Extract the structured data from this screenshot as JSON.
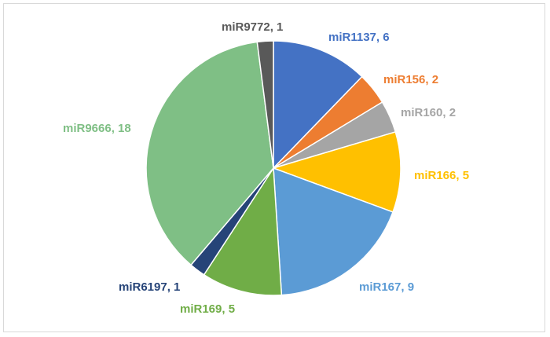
{
  "chart_data": {
    "type": "pie",
    "title": "",
    "slices": [
      {
        "label": "miR1137",
        "value": 6,
        "display": "miR1137, 6",
        "color": "#4472C4"
      },
      {
        "label": "miR156",
        "value": 2,
        "display": "miR156, 2",
        "color": "#ED7D31"
      },
      {
        "label": "miR160",
        "value": 2,
        "display": "miR160, 2",
        "color": "#A5A5A5"
      },
      {
        "label": "miR166",
        "value": 5,
        "display": "miR166, 5",
        "color": "#FFC000"
      },
      {
        "label": "miR167",
        "value": 9,
        "display": "miR167, 9",
        "color": "#5B9BD5"
      },
      {
        "label": "miR169",
        "value": 5,
        "display": "miR169, 5",
        "color": "#70AD47"
      },
      {
        "label": "miR6197",
        "value": 1,
        "display": "miR6197, 1",
        "color": "#264478"
      },
      {
        "label": "miR9666",
        "value": 18,
        "display": "miR9666, 18",
        "color": "#7FBF85"
      },
      {
        "label": "miR9772",
        "value": 1,
        "display": "miR9772, 1",
        "color": "#595959"
      }
    ],
    "legend": "none",
    "data_labels": "outside"
  }
}
